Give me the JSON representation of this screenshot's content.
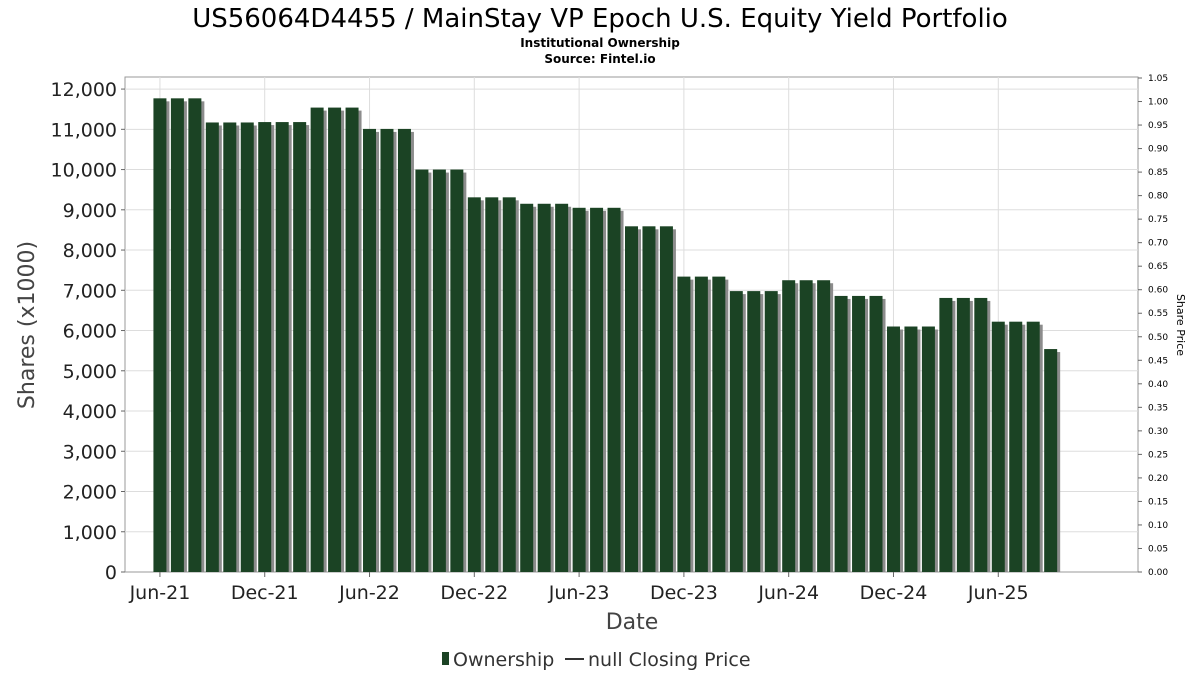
{
  "chart_data": {
    "type": "bar",
    "title": "US56064D4455 / MainStay VP Epoch U.S. Equity Yield Portfolio",
    "subtitle_lines": [
      "Institutional Ownership",
      "Source: Fintel.io"
    ],
    "xlabel": "Date",
    "ylabel": "Shares (x1000)",
    "y2label": "Share Price",
    "ylim": [
      0,
      12300
    ],
    "y_ticks": [
      0,
      1000,
      2000,
      3000,
      4000,
      5000,
      6000,
      7000,
      8000,
      9000,
      10000,
      11000,
      12000
    ],
    "y_tick_labels": [
      "0",
      "1,000",
      "2,000",
      "3,000",
      "4,000",
      "5,000",
      "6,000",
      "7,000",
      "8,000",
      "9,000",
      "10,000",
      "11,000",
      "12,000"
    ],
    "y2lim": [
      0,
      1.05
    ],
    "y2_ticks": [
      0,
      0.05,
      0.1,
      0.15,
      0.2,
      0.25,
      0.3,
      0.35,
      0.4,
      0.45,
      0.5,
      0.55,
      0.6,
      0.65,
      0.7,
      0.75,
      0.8,
      0.85,
      0.9,
      0.95,
      1.0,
      1.05
    ],
    "y2_tick_labels": [
      "0.00",
      "0.05",
      "0.10",
      "0.15",
      "0.20",
      "0.25",
      "0.30",
      "0.35",
      "0.40",
      "0.45",
      "0.50",
      "0.55",
      "0.60",
      "0.65",
      "0.70",
      "0.75",
      "0.80",
      "0.85",
      "0.90",
      "0.95",
      "1.00",
      "1.05"
    ],
    "x_tick_labels": [
      "Jun-21",
      "Dec-21",
      "Jun-22",
      "Dec-22",
      "Jun-23",
      "Dec-23",
      "Jun-24",
      "Dec-24",
      "Jun-25"
    ],
    "x_tick_months": [
      5,
      11,
      17,
      23,
      29,
      35,
      41,
      47,
      53
    ],
    "x_range_months": [
      3,
      61
    ],
    "grid": true,
    "legend_position": "bottom",
    "series": [
      {
        "name": "Ownership",
        "color": "#1b4324",
        "months": [
          5,
          6,
          7,
          8,
          9,
          10,
          11,
          12,
          13,
          14,
          15,
          16,
          17,
          18,
          19,
          20,
          21,
          22,
          23,
          24,
          25,
          26,
          27,
          28,
          29,
          30,
          31,
          32,
          33,
          34,
          35,
          36,
          37,
          38,
          39,
          40,
          41,
          42,
          43,
          44,
          45,
          46,
          47,
          48,
          49,
          50,
          51,
          52,
          53,
          54,
          55,
          56
        ],
        "values": [
          11770,
          11770,
          11770,
          11170,
          11170,
          11170,
          11180,
          11180,
          11180,
          11540,
          11540,
          11540,
          11010,
          11010,
          11010,
          10000,
          10000,
          10000,
          9310,
          9310,
          9310,
          9150,
          9150,
          9150,
          9050,
          9050,
          9050,
          8590,
          8590,
          8590,
          7340,
          7340,
          7340,
          6980,
          6980,
          6980,
          7250,
          7250,
          7250,
          6860,
          6860,
          6860,
          6100,
          6100,
          6100,
          6810,
          6810,
          6810,
          6220,
          6220,
          6220,
          5540
        ]
      }
    ],
    "legend_entries": [
      "Ownership",
      "null Closing Price"
    ]
  }
}
